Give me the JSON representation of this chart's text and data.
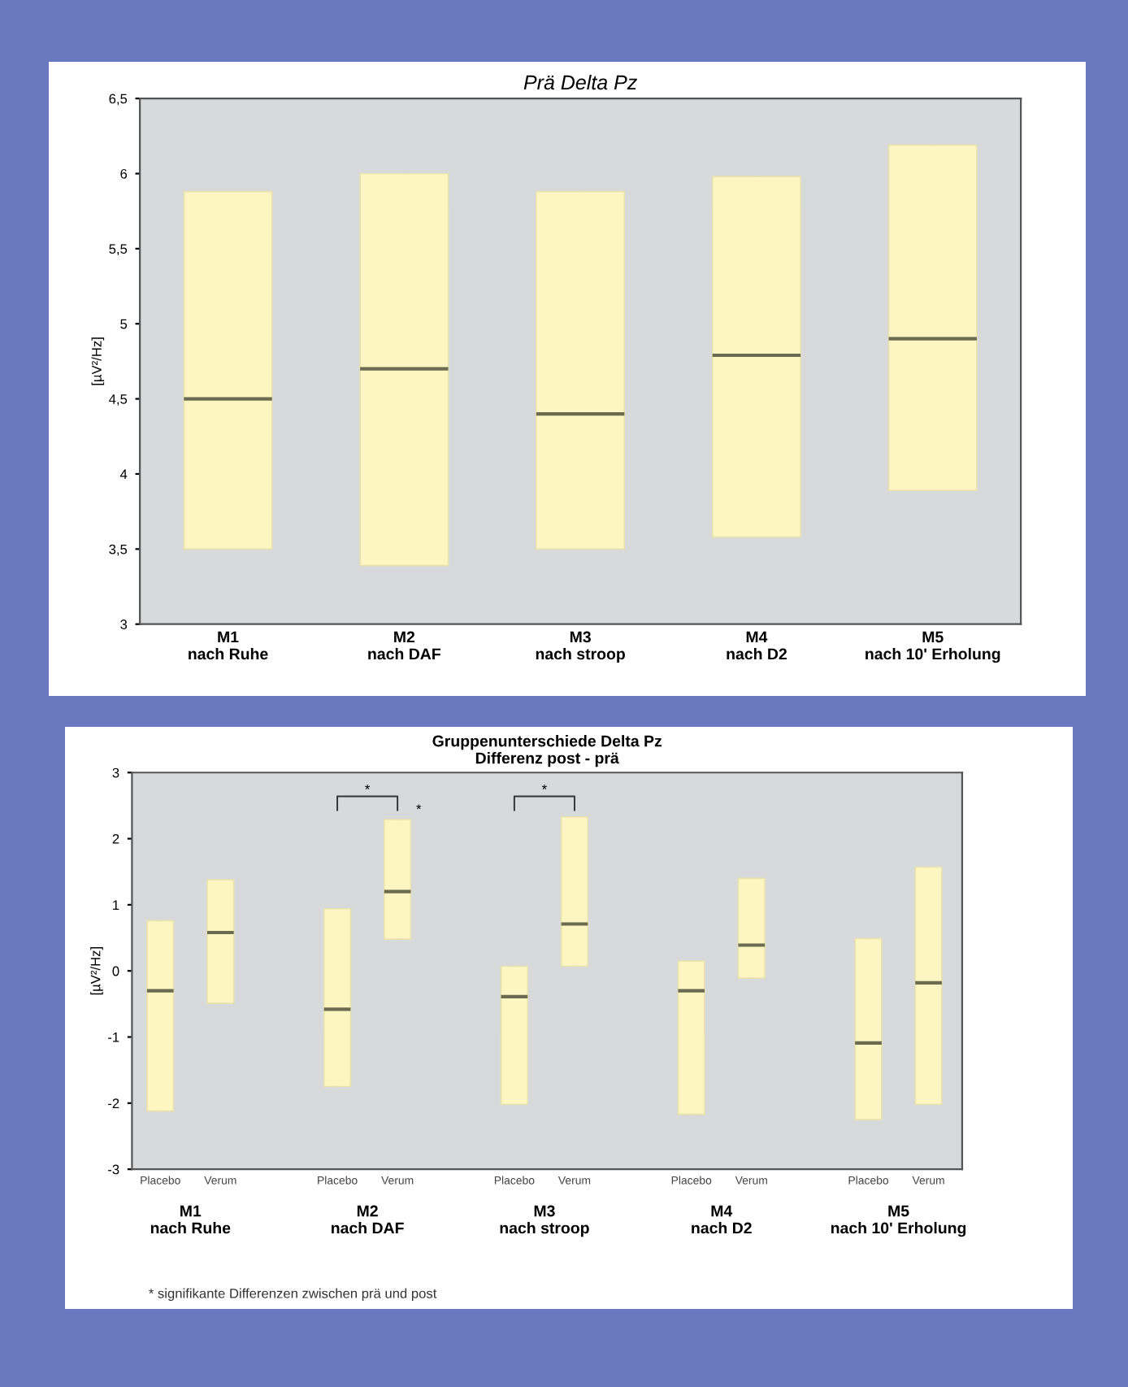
{
  "chart_data": [
    {
      "type": "box",
      "title": "Prä Delta Pz",
      "ylabel": "[µV²/Hz]",
      "categories": [
        "M1\nnach Ruhe",
        "M2\nnach DAF",
        "M3\nnach stroop",
        "M4\nnach D2",
        "M5\nnach 10' Erholung"
      ],
      "series": [
        {
          "color": "#fdf6c3",
          "boxes": [
            {
              "low": 3.5,
              "q1": 3.5,
              "median": 4.5,
              "q3": 5.88,
              "high": 5.88
            },
            {
              "low": 3.39,
              "q1": 3.39,
              "median": 4.7,
              "q3": 6.0,
              "high": 6.0
            },
            {
              "low": 3.5,
              "q1": 3.5,
              "median": 4.4,
              "q3": 5.88,
              "high": 5.88
            },
            {
              "low": 3.58,
              "q1": 3.58,
              "median": 4.79,
              "q3": 5.98,
              "high": 5.98
            },
            {
              "low": 3.89,
              "q1": 3.89,
              "median": 4.9,
              "q3": 6.19,
              "high": 6.19
            }
          ]
        }
      ],
      "ylim": [
        3,
        6.5
      ],
      "yticks": [
        3,
        {
          "value": 3.5,
          "label": "3,5"
        },
        4,
        {
          "value": 4.5,
          "label": "4,5"
        },
        5,
        {
          "value": 5.5,
          "label": "5,5"
        },
        6,
        {
          "value": 6.5,
          "label": "6,5"
        }
      ],
      "grid": false,
      "legend": false
    },
    {
      "type": "box",
      "title": "Gruppenunterschiede Delta Pz\nDifferenz post - prä",
      "ylabel": "[µV²/Hz]",
      "categories": [
        "Placebo",
        "Verum",
        "Placebo",
        "Verum",
        "Placebo",
        "Verum",
        "Placebo",
        "Verum",
        "Placebo",
        "Verum"
      ],
      "series": [
        {
          "color": "#fdf6c3",
          "boxes": [
            {
              "low": -2.12,
              "q1": -2.12,
              "median": -0.3,
              "q3": 0.76,
              "high": 0.76
            },
            {
              "low": -0.49,
              "q1": -0.49,
              "median": 0.58,
              "q3": 1.38,
              "high": 1.38
            },
            {
              "low": -1.75,
              "q1": -1.75,
              "median": -0.58,
              "q3": 0.94,
              "high": 0.94
            },
            {
              "low": 0.48,
              "q1": 0.48,
              "median": 1.2,
              "q3": 2.29,
              "high": 2.29
            },
            {
              "low": -2.02,
              "q1": -2.02,
              "median": -0.39,
              "q3": 0.07,
              "high": 0.07
            },
            {
              "low": 0.07,
              "q1": 0.07,
              "median": 0.71,
              "q3": 2.33,
              "high": 2.33
            },
            {
              "low": -2.17,
              "q1": -2.17,
              "median": -0.3,
              "q3": 0.15,
              "high": 0.15
            },
            {
              "low": -0.11,
              "q1": -0.11,
              "median": 0.39,
              "q3": 1.4,
              "high": 1.4
            },
            {
              "low": -2.25,
              "q1": -2.25,
              "median": -1.09,
              "q3": 0.49,
              "high": 0.49
            },
            {
              "low": -2.02,
              "q1": -2.02,
              "median": -0.18,
              "q3": 1.57,
              "high": 1.57
            }
          ]
        }
      ],
      "ylim": [
        -3,
        3
      ],
      "yticks": [
        -3,
        -2,
        -1,
        0,
        1,
        2,
        3
      ],
      "annotations": [
        "M1\nnach Ruhe",
        "M2\nnach DAF",
        "M3\nnach stroop",
        "M4\nnach D2",
        "M5\nnach 10' Erholung",
        "*",
        "*",
        "*",
        "* signifikante Differenzen zwischen prä und post"
      ],
      "grid": false,
      "legend": false
    }
  ]
}
